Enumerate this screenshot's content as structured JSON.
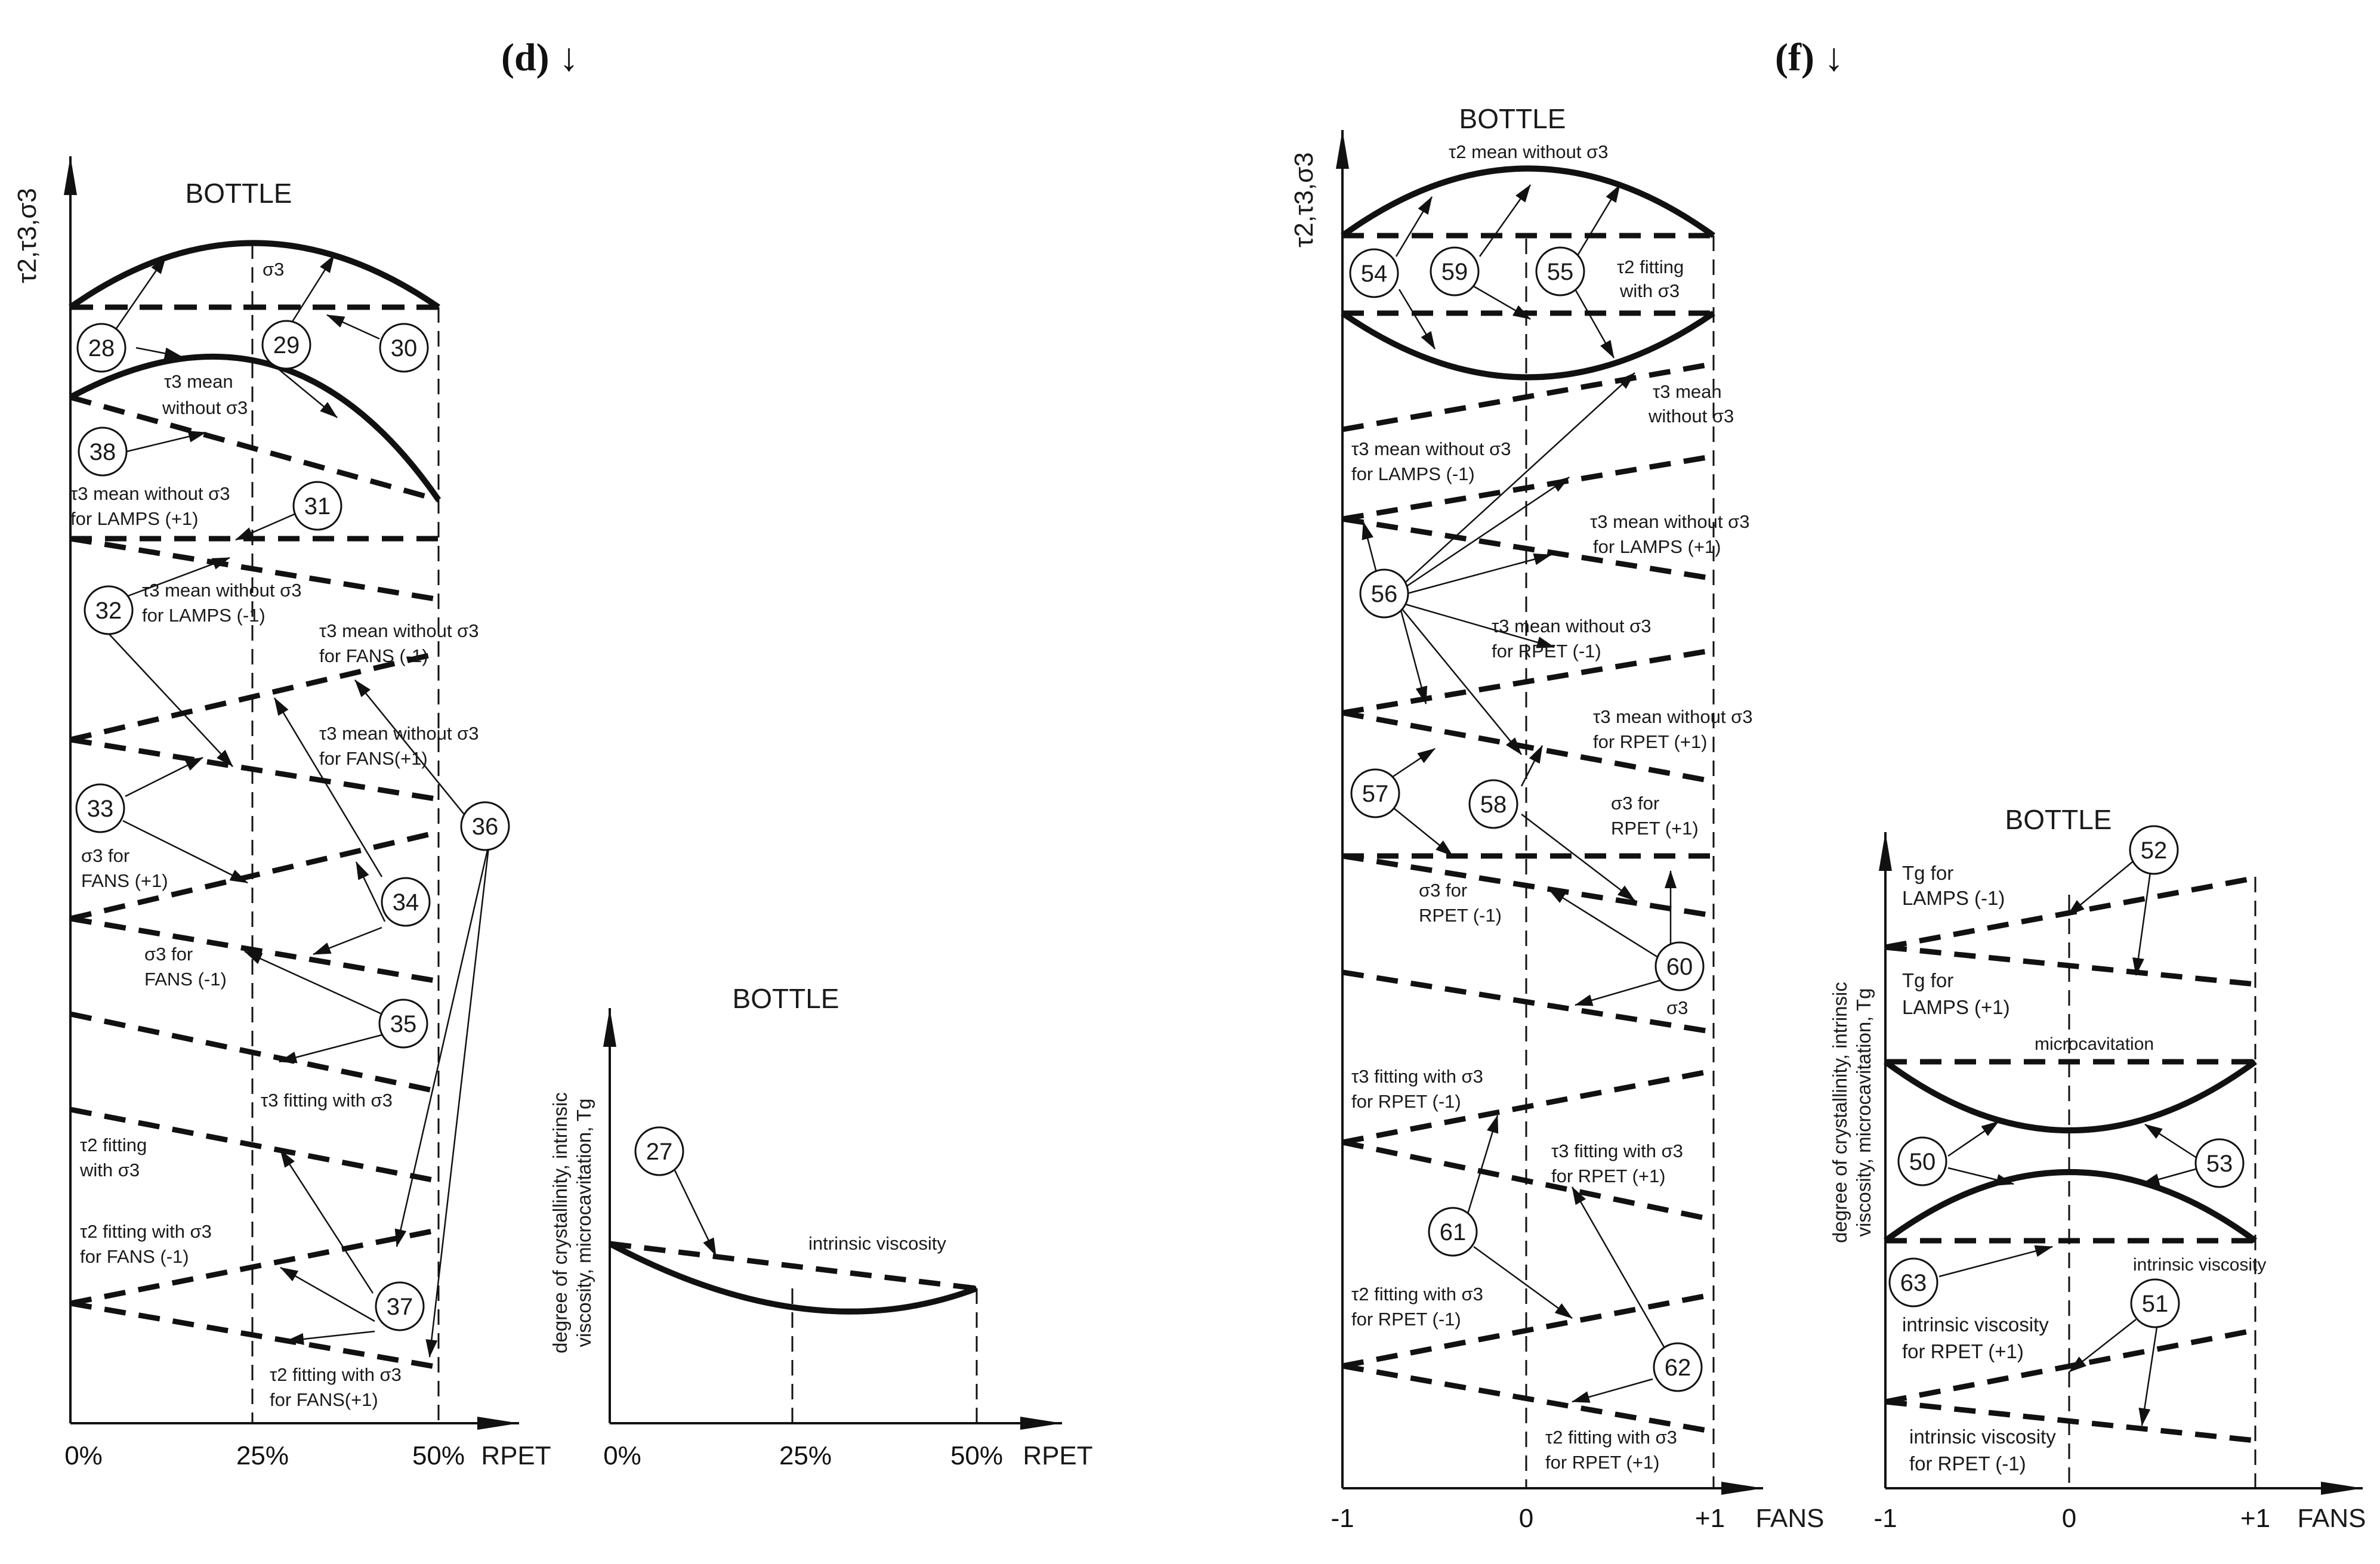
{
  "panel_d": {
    "heading": "(d) ↓",
    "diagram1": {
      "y_axis_label": "τ2,τ3,σ3",
      "title": "BOTTLE",
      "x_axis_label": "RPET",
      "x_ticks": [
        "0%",
        "25%",
        "50%"
      ],
      "labels": {
        "s3": "σ3",
        "t3_mean_1": "τ3 mean",
        "t3_mean_2": "without σ3",
        "t3_lamps_p1_1": "τ3 mean without σ3",
        "t3_lamps_p1_2": "for LAMPS (+1)",
        "t3_lamps_m1_1": "τ3 mean without σ3",
        "t3_lamps_m1_2": "for LAMPS (-1)",
        "t3_fans_m1_1": "τ3 mean without σ3",
        "t3_fans_m1_2": "for FANS (-1)",
        "t3_fans_p1_1": "τ3 mean without σ3",
        "t3_fans_p1_2": "for FANS(+1)",
        "s3_fans_p1_1": "σ3 for",
        "s3_fans_p1_2": "FANS (+1)",
        "s3_fans_m1_1": "σ3 for",
        "s3_fans_m1_2": "FANS (-1)",
        "t3_fit": "τ3 fitting with σ3",
        "t2_fit_1": "τ2 fitting",
        "t2_fit_2": "with σ3",
        "t2_fans_m1_1": "τ2 fitting with σ3",
        "t2_fans_m1_2": "for FANS (-1)",
        "t2_fans_p1_1": "τ2 fitting with σ3",
        "t2_fans_p1_2": "for FANS(+1)"
      },
      "markers": [
        "28",
        "29",
        "30",
        "38",
        "31",
        "32",
        "33",
        "36",
        "34",
        "35",
        "37"
      ]
    },
    "diagram2": {
      "y_axis_label_1": "degree of crystallinity, intrinsic",
      "y_axis_label_2": "viscosity, microcavitation, Tg",
      "title": "BOTTLE",
      "x_axis_label": "RPET",
      "x_ticks": [
        "0%",
        "25%",
        "50%"
      ],
      "labels": {
        "iv": "intrinsic viscosity"
      },
      "markers": [
        "27"
      ]
    }
  },
  "panel_f": {
    "heading": "(f) ↓",
    "diagram1": {
      "y_axis_label": "τ2,τ3,σ3",
      "title": "BOTTLE",
      "x_axis_label": "FANS",
      "x_ticks": [
        "-1",
        "0",
        "+1"
      ],
      "labels": {
        "t2_mean": "τ2 mean without σ3",
        "t2_fit_1": "τ2 fitting",
        "t2_fit_2": "with σ3",
        "t3_mean_1": "τ3 mean",
        "t3_mean_2": "without σ3",
        "t3_lamps_m1_1": "τ3 mean without σ3",
        "t3_lamps_m1_2": "for LAMPS (-1)",
        "t3_lamps_p1_1": "τ3 mean without σ3",
        "t3_lamps_p1_2": "for LAMPS (+1)",
        "t3_rpet_m1_1": "τ3 mean without σ3",
        "t3_rpet_m1_2": "for RPET (-1)",
        "t3_rpet_p1_1": "τ3 mean without σ3",
        "t3_rpet_p1_2": "for RPET (+1)",
        "s3_rpet_p1_1": "σ3 for",
        "s3_rpet_p1_2": "RPET (+1)",
        "s3_rpet_m1_1": "σ3 for",
        "s3_rpet_m1_2": "RPET (-1)",
        "s3": "σ3",
        "t3_fit_rpet_m1_1": "τ3 fitting with σ3",
        "t3_fit_rpet_m1_2": "for RPET (-1)",
        "t3_fit_rpet_p1_1": "τ3 fitting with σ3",
        "t3_fit_rpet_p1_2": "for RPET (+1)",
        "t2_fit_rpet_m1_1": "τ2 fitting with σ3",
        "t2_fit_rpet_m1_2": "for RPET (-1)",
        "t2_fit_rpet_p1_1": "τ2 fitting with σ3",
        "t2_fit_rpet_p1_2": "for RPET (+1)"
      },
      "markers": [
        "54",
        "59",
        "55",
        "56",
        "57",
        "58",
        "60",
        "61",
        "62"
      ]
    },
    "diagram2": {
      "y_axis_label_1": "degree of crystallinity, intrinsic",
      "y_axis_label_2": "viscosity, microcavitation, Tg",
      "title": "BOTTLE",
      "x_axis_label": "FANS",
      "x_ticks": [
        "-1",
        "0",
        "+1"
      ],
      "labels": {
        "tg_lamps_m1_1": "Tg for",
        "tg_lamps_m1_2": "LAMPS (-1)",
        "tg_lamps_p1_1": "Tg for",
        "tg_lamps_p1_2": "LAMPS (+1)",
        "micro": "microcavitation",
        "iv": "intrinsic viscosity",
        "iv_rpet_p1_1": "intrinsic viscosity",
        "iv_rpet_p1_2": "for RPET (+1)",
        "iv_rpet_m1_1": "intrinsic viscosity",
        "iv_rpet_m1_2": "for RPET (-1)"
      },
      "markers": [
        "52",
        "50",
        "53",
        "63",
        "51"
      ]
    }
  }
}
